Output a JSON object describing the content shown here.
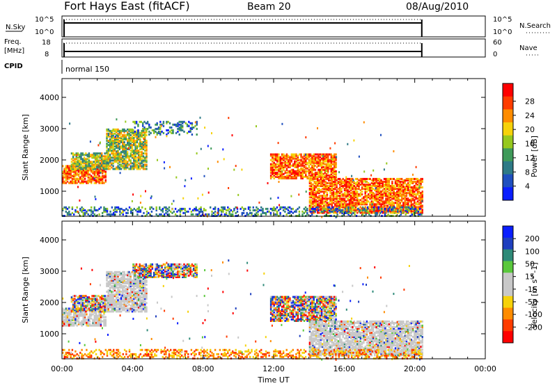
{
  "header": {
    "station": "Fort Hays East (fitACF)",
    "beam": "Beam 20",
    "date": "08/Aug/2010"
  },
  "strips": {
    "nsky_label": "N.Sky",
    "nsky_ticks": [
      "10^5",
      "10^0"
    ],
    "nsearch_label": "N.Search",
    "nsearch_ticks": [
      "10^5",
      "10^0"
    ],
    "freq_label_line1": "Freq.",
    "freq_label_line2": "[MHz]",
    "freq_ticks": [
      "18",
      "8"
    ],
    "nave_label": "Nave",
    "nave_ticks": [
      "60",
      "0"
    ],
    "cpid_label": "CPID",
    "cpid_value": "normal 150"
  },
  "colors": {
    "power_scale": [
      "#0a1eff",
      "#1f4fbf",
      "#2e7a86",
      "#3f9a5a",
      "#96c81e",
      "#f6d20a",
      "#ff8c00",
      "#ff3c00",
      "#ff0000"
    ],
    "velocity_scale": [
      "#ff0000",
      "#ff3c00",
      "#ff8c00",
      "#f6d20a",
      "#c8c8c8",
      "#c8c8c8",
      "#5ac83c",
      "#2e8a78",
      "#1f3fbf",
      "#0a1eff"
    ],
    "axis": "#000000"
  },
  "chart_data": [
    {
      "type": "heatmap",
      "name": "power",
      "ylabel": "Slant Range [km]",
      "yticks": [
        1000,
        2000,
        3000,
        4000
      ],
      "ylim": [
        200,
        4600
      ],
      "xlim_hours": [
        0,
        24
      ],
      "xticks": [
        "00:00",
        "04:00",
        "08:00",
        "12:00",
        "16:00",
        "20:00",
        "00:00"
      ],
      "xlabel": "Time UT",
      "colorbar_label": "Power [dB]",
      "colorbar_ticks": [
        4,
        8,
        12,
        16,
        20,
        24,
        28
      ],
      "data_end_hour": 20.4,
      "echo_bands": [
        {
          "t0": 0.0,
          "t1": 2.5,
          "r0": 1250,
          "r1": 1800,
          "level": "high"
        },
        {
          "t0": 0.5,
          "t1": 2.6,
          "r0": 1700,
          "r1": 2200,
          "level": "mid"
        },
        {
          "t0": 2.5,
          "t1": 4.8,
          "r0": 1700,
          "r1": 3000,
          "level": "mid"
        },
        {
          "t0": 4.0,
          "t1": 7.6,
          "r0": 2800,
          "r1": 3250,
          "level": "low"
        },
        {
          "t0": 11.8,
          "t1": 15.5,
          "r0": 1400,
          "r1": 2200,
          "level": "high"
        },
        {
          "t0": 14.0,
          "t1": 20.4,
          "r0": 300,
          "r1": 1400,
          "level": "high"
        },
        {
          "t0": 0.0,
          "t1": 20.4,
          "r0": 200,
          "r1": 500,
          "level": "low"
        }
      ]
    },
    {
      "type": "heatmap",
      "name": "velocity",
      "ylabel": "Slant Range [km]",
      "yticks": [
        1000,
        2000,
        3000,
        4000
      ],
      "ylim": [
        200,
        4600
      ],
      "xlim_hours": [
        0,
        24
      ],
      "xticks": [
        "00:00",
        "04:00",
        "08:00",
        "12:00",
        "16:00",
        "20:00",
        "00:00"
      ],
      "xlabel": "Time UT",
      "colorbar_label": "Velocity [m s^-1]",
      "colorbar_ticks": [
        200,
        100,
        50,
        15,
        -15,
        -50,
        -100,
        -200
      ],
      "data_end_hour": 20.4,
      "echo_bands": [
        {
          "t0": 0.0,
          "t1": 2.5,
          "r0": 1250,
          "r1": 1800,
          "level": "ground"
        },
        {
          "t0": 0.5,
          "t1": 2.6,
          "r0": 1700,
          "r1": 2200,
          "level": "mixed"
        },
        {
          "t0": 2.5,
          "t1": 4.8,
          "r0": 1700,
          "r1": 3000,
          "level": "ground"
        },
        {
          "t0": 4.0,
          "t1": 7.6,
          "r0": 2800,
          "r1": 3250,
          "level": "mixed"
        },
        {
          "t0": 11.8,
          "t1": 15.5,
          "r0": 1400,
          "r1": 2200,
          "level": "mixed"
        },
        {
          "t0": 14.0,
          "t1": 20.4,
          "r0": 300,
          "r1": 1400,
          "level": "ground"
        },
        {
          "t0": 0.0,
          "t1": 20.4,
          "r0": 200,
          "r1": 500,
          "level": "neg"
        }
      ]
    }
  ]
}
